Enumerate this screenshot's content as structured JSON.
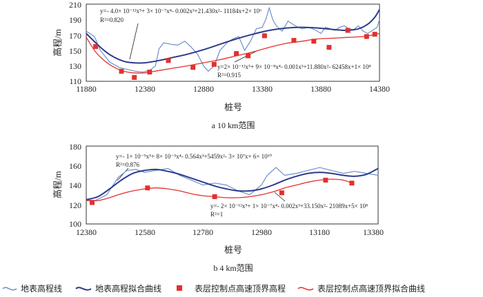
{
  "chart_data": [
    {
      "type": "line",
      "caption": "a  10 km范围",
      "xlabel": "桩号",
      "ylabel": "高程/m",
      "xlim": [
        11880,
        14380
      ],
      "ylim": [
        110,
        210
      ],
      "xticks": [
        11880,
        12380,
        12880,
        13380,
        13880,
        14380
      ],
      "yticks": [
        110,
        130,
        150,
        170,
        190,
        210
      ],
      "series": [
        {
          "name": "地表高程线",
          "x": [
            11880,
            11950,
            12000,
            12080,
            12160,
            12240,
            12300,
            12360,
            12420,
            12470,
            12500,
            12540,
            12600,
            12660,
            12720,
            12770,
            12830,
            12880,
            12920,
            12970,
            13020,
            13080,
            13130,
            13180,
            13230,
            13280,
            13330,
            13380,
            13410,
            13440,
            13470,
            13500,
            13550,
            13600,
            13660,
            13720,
            13780,
            13840,
            13880,
            13920,
            13960,
            14000,
            14040,
            14080,
            14120,
            14160,
            14200,
            14240,
            14280,
            14320,
            14360,
            14380
          ],
          "y": [
            175,
            168,
            150,
            135,
            128,
            125,
            123,
            122,
            124,
            130,
            152,
            160,
            158,
            157,
            162,
            155,
            145,
            130,
            123,
            130,
            150,
            160,
            165,
            168,
            150,
            162,
            178,
            180,
            190,
            205,
            190,
            182,
            175,
            188,
            182,
            178,
            180,
            176,
            172,
            180,
            178,
            176,
            180,
            182,
            178,
            177,
            182,
            175,
            172,
            176,
            180,
            190
          ]
        },
        {
          "name": "地表高程拟合曲线",
          "equation": "y=- 4.0× 10⁻¹²x⁵+ 3× 10⁻⁷x⁴- 0.002x³+21.430x²- 11184x+2× 10⁶",
          "r2": "R²=0.820",
          "x": [
            11880,
            11960,
            12040,
            12120,
            12200,
            12280,
            12380,
            12500,
            12620,
            12740,
            12880,
            13020,
            13160,
            13300,
            13440,
            13580,
            13720,
            13860,
            14000,
            14100,
            14200,
            14280,
            14340,
            14380
          ],
          "y": [
            172,
            160,
            149,
            141,
            136,
            134,
            134,
            137,
            141,
            145,
            151,
            158,
            165,
            171,
            176,
            179,
            180,
            179,
            177,
            176,
            178,
            184,
            193,
            203
          ]
        },
        {
          "name": "表层控制点高速顶界高程",
          "x": [
            11960,
            12180,
            12290,
            12420,
            12580,
            12790,
            12970,
            13160,
            13260,
            13400,
            13650,
            13820,
            13950,
            14110,
            14270,
            14340
          ],
          "y": [
            155,
            123,
            115,
            122,
            137,
            128,
            132,
            146,
            143,
            169,
            163,
            162,
            154,
            176,
            168,
            171
          ]
        },
        {
          "name": "表层控制点高速顶界拟合曲线",
          "equation": "y=2× 10⁻¹²x⁵+ 9× 10⁻⁸x⁴- 0.001x³+11.880x²- 62458x+1× 10⁸",
          "r2": "R²=0.915",
          "x": [
            11880,
            11960,
            12040,
            12120,
            12200,
            12280,
            12380,
            12500,
            12620,
            12740,
            12880,
            13020,
            13160,
            13300,
            13440,
            13580,
            13720,
            13860,
            14000,
            14120,
            14240,
            14320,
            14380
          ],
          "y": [
            167,
            148,
            136,
            128,
            123,
            121,
            121,
            124,
            127,
            130,
            134,
            138,
            143,
            148,
            154,
            159,
            162,
            165,
            166,
            167,
            168,
            170,
            172
          ]
        }
      ]
    },
    {
      "type": "line",
      "caption": "b  4 km范围",
      "xlabel": "桩号",
      "ylabel": "高程/m",
      "xlim": [
        12380,
        13380
      ],
      "ylim": [
        100,
        180
      ],
      "xticks": [
        12380,
        12580,
        12780,
        12980,
        13180,
        13380
      ],
      "yticks": [
        100,
        120,
        140,
        160,
        180
      ],
      "series": [
        {
          "name": "地表高程线",
          "x": [
            12380,
            12410,
            12450,
            12490,
            12520,
            12550,
            12580,
            12620,
            12660,
            12700,
            12740,
            12780,
            12820,
            12860,
            12900,
            12940,
            12980,
            13000,
            13030,
            13060,
            13100,
            13140,
            13180,
            13220,
            13260,
            13300,
            13340,
            13380
          ],
          "y": [
            125,
            124,
            130,
            148,
            155,
            156,
            153,
            155,
            157,
            150,
            145,
            140,
            142,
            140,
            134,
            130,
            140,
            150,
            158,
            150,
            152,
            155,
            158,
            155,
            152,
            154,
            152,
            150
          ]
        },
        {
          "name": "地表高程拟合曲线",
          "equation": "y=- 1× 10⁻⁹x⁵+ 8× 10⁻⁵x⁴- 0.564x³+5459x²- 3× 10⁷x+ 6× 10¹⁰",
          "r2": "R²=0.876",
          "x": [
            12380,
            12420,
            12460,
            12500,
            12540,
            12580,
            12620,
            12660,
            12700,
            12740,
            12780,
            12820,
            12860,
            12900,
            12940,
            12980,
            13020,
            13060,
            13100,
            13140,
            13180,
            13220,
            13260,
            13300,
            13340,
            13380
          ],
          "y": [
            125,
            128,
            136,
            145,
            152,
            155,
            156,
            154,
            151,
            147,
            143,
            139,
            136,
            134,
            134,
            136,
            140,
            145,
            149,
            152,
            153,
            152,
            150,
            149,
            151,
            157
          ]
        },
        {
          "name": "表层控制点高速顶界高程",
          "x": [
            12400,
            12590,
            12820,
            13050,
            13200,
            13290
          ],
          "y": [
            122,
            137,
            128,
            132,
            145,
            142
          ]
        },
        {
          "name": "表层控制点高速顶界拟合曲线",
          "equation": "y=- 2× 10⁻¹²x⁵+ 1× 10⁻⁷x⁴- 0.002x³+33.150x²- 21089x+5× 10⁸",
          "r2": "R²=1",
          "x": [
            12380,
            12420,
            12460,
            12500,
            12540,
            12580,
            12620,
            12660,
            12700,
            12740,
            12780,
            12820,
            12860,
            12900,
            12940,
            12980,
            13020,
            13060,
            13100,
            13140,
            13180,
            13220,
            13260,
            13290
          ],
          "y": [
            124,
            124,
            127,
            131,
            134,
            136,
            137,
            136,
            134,
            131,
            129,
            128,
            127,
            127,
            128,
            130,
            133,
            137,
            140,
            143,
            145,
            146,
            145,
            142
          ]
        }
      ]
    }
  ],
  "legend": [
    {
      "label": "地表高程线",
      "kind": "line",
      "color": "#6d8fc9"
    },
    {
      "label": "地表高程拟合曲线",
      "kind": "line",
      "color": "#2b3a8c"
    },
    {
      "label": "表层控制点高速顶界高程",
      "kind": "marker",
      "color": "#e3302f"
    },
    {
      "label": "表层控制点高速顶界拟合曲线",
      "kind": "line",
      "color": "#e3302f"
    }
  ],
  "colors": {
    "surface": "#6d8fc9",
    "surface_fit": "#2b3a8c",
    "control": "#e3302f",
    "control_fit": "#e3302f"
  }
}
